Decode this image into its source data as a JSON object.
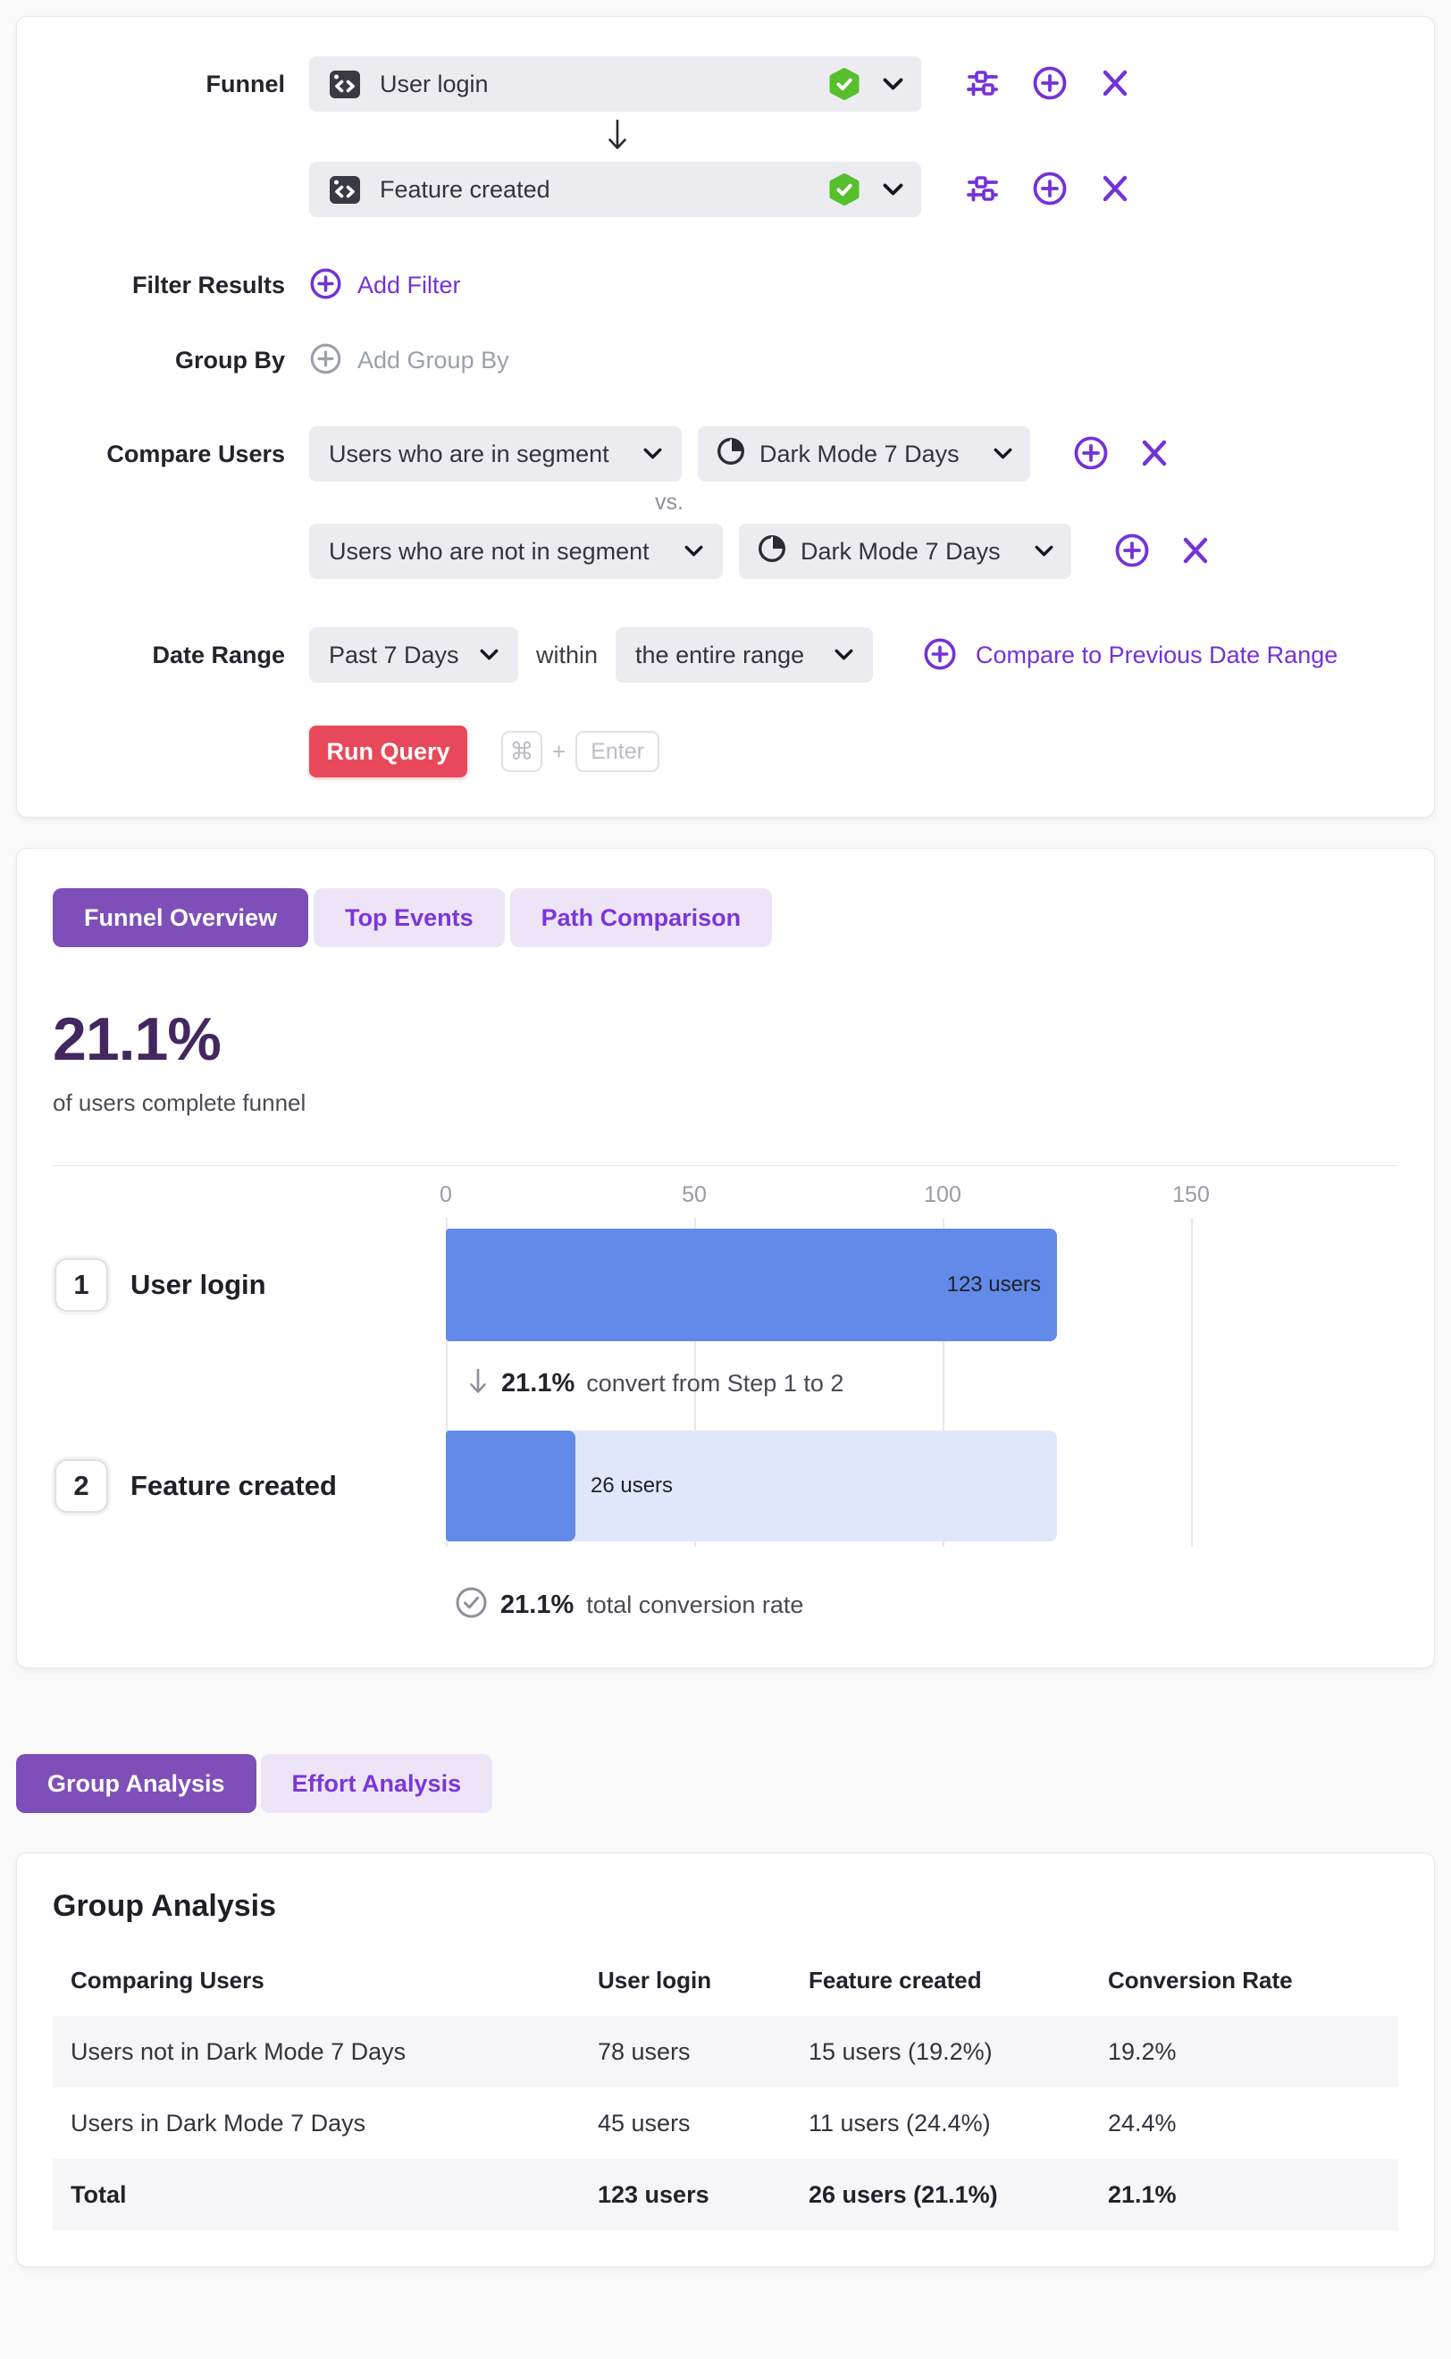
{
  "colors": {
    "accent_purple": "#7432d8",
    "tab_active_bg": "#7e4fb8",
    "tab_inactive_bg": "#ede5f7",
    "headline_purple": "#43285f",
    "run_button_red": "#e8495a",
    "bar_blue": "#628ae9",
    "bar_track_blue": "#dfe8fb",
    "pill_gray": "#ececf0",
    "verified_green": "#55bf2c"
  },
  "icons": {
    "event": "code-window-icon",
    "verified": "shield-check-icon",
    "dropdown": "chevron-down-icon",
    "configure": "sliders-icon",
    "add": "plus-circle-icon",
    "remove": "x-icon",
    "segment": "pie-chart-icon",
    "step_flow": "arrow-down-icon",
    "total": "check-circle-icon"
  },
  "query": {
    "funnel_label": "Funnel",
    "steps": [
      {
        "event": "User login"
      },
      {
        "event": "Feature created"
      }
    ],
    "filter": {
      "label": "Filter Results",
      "add": "Add Filter"
    },
    "group": {
      "label": "Group By",
      "add": "Add Group By"
    },
    "compare": {
      "label": "Compare Users",
      "vs": "vs.",
      "rows": [
        {
          "type": "Users who are in segment",
          "segment": "Dark Mode 7 Days"
        },
        {
          "type": "Users who are not in segment",
          "segment": "Dark Mode 7 Days"
        }
      ]
    },
    "date": {
      "label": "Date Range",
      "range": "Past 7 Days",
      "within": "within",
      "window": "the entire range",
      "compare_link": "Compare to Previous Date Range"
    },
    "run": {
      "label": "Run Query",
      "cmd": "⌘",
      "plus": "+",
      "enter": "Enter"
    }
  },
  "results": {
    "tabs": [
      {
        "label": "Funnel Overview",
        "active": true
      },
      {
        "label": "Top Events",
        "active": false
      },
      {
        "label": "Path Comparison",
        "active": false
      }
    ],
    "headline": "21.1%",
    "headline_caption": "of users complete funnel",
    "chart_data": {
      "type": "bar",
      "orientation": "horizontal",
      "title": "",
      "categories": [
        "User login",
        "Feature created"
      ],
      "step_numbers": [
        "1",
        "2"
      ],
      "values": [
        123,
        26
      ],
      "value_labels": [
        "123 users",
        "26 users"
      ],
      "x_ticks": [
        "0",
        "50",
        "100",
        "150"
      ],
      "xlim": [
        0,
        195
      ],
      "grid": true,
      "legend": "none",
      "annotations": {
        "step_conversion": {
          "arrow": "↓",
          "pct": "21.1%",
          "text": "convert from Step 1 to 2"
        },
        "total_conversion": {
          "pct": "21.1%",
          "text": "total conversion rate"
        }
      }
    }
  },
  "analysis": {
    "tabs": [
      {
        "label": "Group Analysis",
        "active": true
      },
      {
        "label": "Effort Analysis",
        "active": false
      }
    ],
    "title": "Group Analysis",
    "table": {
      "columns": [
        "Comparing Users",
        "User login",
        "Feature created",
        "Conversion Rate"
      ],
      "rows": [
        [
          "Users not in Dark Mode 7 Days",
          "78 users",
          "15 users (19.2%)",
          "19.2%"
        ],
        [
          "Users in Dark Mode 7 Days",
          "45 users",
          "11 users (24.4%)",
          "24.4%"
        ],
        [
          "Total",
          "123 users",
          "26 users (21.1%)",
          "21.1%"
        ]
      ]
    }
  }
}
